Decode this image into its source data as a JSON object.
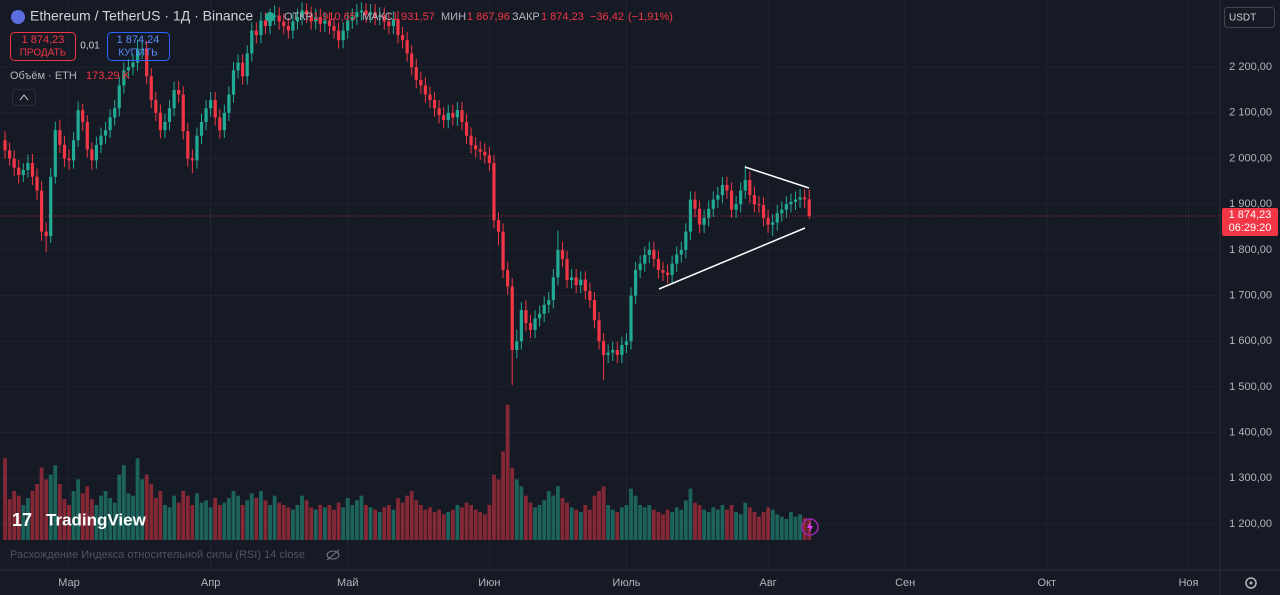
{
  "chart_data": {
    "type": "candlestick",
    "title": "Ethereum / TetherUS · 1Д · Binance",
    "ohlc_titles": {
      "open": "ОТКР",
      "high": "МАКС",
      "low": "МИН",
      "close": "ЗАКР"
    },
    "ohlc_labels": {
      "open": "1 910,65",
      "high": "1 931,57",
      "low": "1 867,96",
      "close": "1 874,23"
    },
    "change": {
      "value": -36.42,
      "label": "−36,42"
    },
    "change_pct": {
      "value": -1.91,
      "label": "(−1,91%)"
    },
    "sell": {
      "price": "1 874,23",
      "text": "ПРОДАТЬ"
    },
    "spread": "0,01",
    "buy": {
      "price": "1 874,24",
      "text": "КУПИТЬ"
    },
    "volume_title": "Объём · ETH",
    "volume_label": "173,29 K",
    "currency": "USDT",
    "price_tag": {
      "price": "1 874,23",
      "countdown": "06:29:20"
    },
    "indicator": "Расхождение Индекса относительной силы (RSI) 14 close",
    "logo": "TradingView",
    "up_color": "#22ab94",
    "down_color": "#f23645",
    "open": [
      2040,
      2018,
      2000,
      1980,
      1964,
      1975,
      1990,
      1960,
      1930,
      1840,
      1830,
      1960,
      2062,
      2030,
      2000,
      1996,
      2040,
      2106,
      2080,
      2020,
      1996,
      2030,
      2050,
      2062,
      2090,
      2110,
      2160,
      2193,
      2200,
      2210,
      2237,
      2240,
      2180,
      2128,
      2100,
      2062,
      2080,
      2110,
      2150,
      2140,
      2060,
      2000,
      1996,
      2050,
      2080,
      2110,
      2128,
      2090,
      2062,
      2100,
      2140,
      2193,
      2210,
      2180,
      2230,
      2280,
      2270,
      2302,
      2290,
      2310,
      2313,
      2300,
      2290,
      2280,
      2300,
      2310,
      2324,
      2315,
      2300,
      2310,
      2295,
      2302,
      2290,
      2280,
      2259,
      2280,
      2302,
      2310,
      2320,
      2324,
      2315,
      2320,
      2310,
      2313,
      2300,
      2290,
      2305,
      2270,
      2259,
      2230,
      2200,
      2172,
      2160,
      2140,
      2128,
      2110,
      2095,
      2084,
      2100,
      2090,
      2106,
      2080,
      2050,
      2029,
      2020,
      2015,
      2007,
      1990,
      1865,
      1840,
      1756,
      1720,
      1581,
      1600,
      1668,
      1640,
      1625,
      1650,
      1660,
      1680,
      1690,
      1740,
      1800,
      1780,
      1734,
      1740,
      1723,
      1735,
      1710,
      1690,
      1646,
      1600,
      1570,
      1575,
      1581,
      1570,
      1592,
      1600,
      1700,
      1756,
      1770,
      1789,
      1800,
      1780,
      1756,
      1750,
      1745,
      1770,
      1790,
      1800,
      1840,
      1910,
      1890,
      1855,
      1870,
      1890,
      1910,
      1920,
      1942,
      1930,
      1888,
      1900,
      1930,
      1953,
      1920,
      1900,
      1898,
      1870,
      1855,
      1860,
      1880,
      1888,
      1900,
      1905,
      1910,
      1915,
      1910.65
    ],
    "high": [
      2060,
      2035,
      2018,
      1998,
      1990,
      2008,
      2010,
      1978,
      1950,
      1860,
      1980,
      2080,
      2085,
      2050,
      2020,
      2058,
      2125,
      2120,
      2095,
      2035,
      2048,
      2068,
      2080,
      2108,
      2128,
      2178,
      2210,
      2218,
      2228,
      2260,
      2262,
      2258,
      2198,
      2146,
      2118,
      2098,
      2128,
      2168,
      2170,
      2158,
      2078,
      2020,
      2068,
      2098,
      2128,
      2146,
      2146,
      2108,
      2118,
      2158,
      2211,
      2228,
      2228,
      2248,
      2298,
      2298,
      2320,
      2320,
      2328,
      2335,
      2331,
      2318,
      2308,
      2318,
      2328,
      2342,
      2340,
      2333,
      2328,
      2328,
      2320,
      2320,
      2308,
      2298,
      2298,
      2320,
      2328,
      2338,
      2342,
      2340,
      2338,
      2338,
      2331,
      2331,
      2318,
      2323,
      2323,
      2288,
      2277,
      2248,
      2218,
      2190,
      2178,
      2158,
      2146,
      2128,
      2113,
      2118,
      2118,
      2124,
      2124,
      2098,
      2068,
      2047,
      2038,
      2033,
      2025,
      2008,
      1882,
      1858,
      1774,
      1738,
      1625,
      1686,
      1690,
      1658,
      1668,
      1678,
      1698,
      1708,
      1758,
      1842,
      1818,
      1798,
      1758,
      1758,
      1753,
      1753,
      1728,
      1708,
      1664,
      1618,
      1593,
      1599,
      1599,
      1610,
      1618,
      1718,
      1774,
      1788,
      1807,
      1818,
      1818,
      1798,
      1774,
      1768,
      1788,
      1808,
      1818,
      1858,
      1928,
      1928,
      1908,
      1888,
      1908,
      1928,
      1938,
      1960,
      1960,
      1948,
      1918,
      1948,
      1985,
      1971,
      1938,
      1918,
      1916,
      1888,
      1878,
      1898,
      1906,
      1918,
      1923,
      1928,
      1933,
      1933,
      1931.57
    ],
    "low": [
      2000,
      1985,
      1962,
      1945,
      1948,
      1958,
      1942,
      1910,
      1820,
      1795,
      1815,
      1945,
      2012,
      1982,
      1975,
      1978,
      2025,
      2060,
      2002,
      1975,
      1978,
      2012,
      2032,
      2045,
      2072,
      2092,
      2142,
      2175,
      2182,
      2192,
      2218,
      2162,
      2110,
      2082,
      2044,
      2045,
      2062,
      2092,
      2122,
      2042,
      1982,
      1968,
      1978,
      2032,
      2062,
      2092,
      2072,
      2044,
      2045,
      2082,
      2122,
      2175,
      2162,
      2162,
      2212,
      2252,
      2252,
      2272,
      2272,
      2292,
      2282,
      2272,
      2262,
      2262,
      2282,
      2292,
      2297,
      2282,
      2282,
      2277,
      2277,
      2272,
      2262,
      2241,
      2241,
      2262,
      2284,
      2292,
      2302,
      2297,
      2297,
      2292,
      2292,
      2282,
      2272,
      2272,
      2252,
      2241,
      2212,
      2182,
      2154,
      2142,
      2122,
      2110,
      2092,
      2077,
      2066,
      2066,
      2072,
      2072,
      2062,
      2032,
      2011,
      2002,
      1997,
      1989,
      1972,
      1847,
      1810,
      1738,
      1702,
      1504,
      1563,
      1582,
      1622,
      1607,
      1607,
      1632,
      1642,
      1662,
      1672,
      1722,
      1762,
      1716,
      1716,
      1705,
      1705,
      1692,
      1672,
      1628,
      1582,
      1515,
      1552,
      1557,
      1552,
      1552,
      1574,
      1582,
      1682,
      1738,
      1752,
      1771,
      1762,
      1738,
      1732,
      1727,
      1727,
      1752,
      1772,
      1782,
      1822,
      1872,
      1837,
      1837,
      1852,
      1872,
      1892,
      1902,
      1912,
      1870,
      1870,
      1882,
      1912,
      1902,
      1882,
      1880,
      1852,
      1837,
      1830,
      1842,
      1862,
      1870,
      1882,
      1887,
      1892,
      1892,
      1867.96
    ],
    "close": [
      2018,
      2000,
      1980,
      1964,
      1975,
      1990,
      1960,
      1930,
      1840,
      1830,
      1960,
      2062,
      2030,
      2000,
      1996,
      2040,
      2106,
      2080,
      2020,
      1996,
      2030,
      2050,
      2062,
      2090,
      2110,
      2160,
      2193,
      2200,
      2210,
      2237,
      2240,
      2180,
      2128,
      2100,
      2062,
      2080,
      2110,
      2150,
      2140,
      2060,
      2000,
      1996,
      2050,
      2080,
      2110,
      2128,
      2090,
      2062,
      2100,
      2140,
      2193,
      2210,
      2180,
      2230,
      2280,
      2270,
      2302,
      2290,
      2310,
      2313,
      2300,
      2290,
      2280,
      2300,
      2310,
      2324,
      2315,
      2300,
      2310,
      2295,
      2302,
      2290,
      2280,
      2259,
      2280,
      2302,
      2310,
      2320,
      2324,
      2315,
      2320,
      2310,
      2313,
      2300,
      2290,
      2305,
      2270,
      2259,
      2230,
      2200,
      2172,
      2160,
      2140,
      2128,
      2110,
      2095,
      2084,
      2100,
      2090,
      2106,
      2080,
      2050,
      2029,
      2020,
      2015,
      2007,
      1990,
      1865,
      1840,
      1756,
      1720,
      1581,
      1600,
      1668,
      1640,
      1625,
      1650,
      1660,
      1680,
      1690,
      1740,
      1800,
      1780,
      1734,
      1740,
      1723,
      1735,
      1710,
      1690,
      1646,
      1600,
      1570,
      1575,
      1581,
      1570,
      1592,
      1600,
      1700,
      1756,
      1770,
      1789,
      1800,
      1780,
      1756,
      1750,
      1745,
      1770,
      1790,
      1800,
      1840,
      1910,
      1890,
      1855,
      1870,
      1890,
      1910,
      1920,
      1942,
      1930,
      1888,
      1900,
      1930,
      1953,
      1920,
      1900,
      1898,
      1870,
      1855,
      1860,
      1880,
      1888,
      1900,
      1905,
      1910,
      1915,
      1910.65,
      1874.23
    ],
    "volume": [
      700000,
      350000,
      420000,
      380000,
      300000,
      360000,
      420000,
      480000,
      620000,
      520000,
      560000,
      640000,
      480000,
      350000,
      300000,
      420000,
      520000,
      400000,
      460000,
      350000,
      300000,
      380000,
      420000,
      360000,
      320000,
      560000,
      640000,
      400000,
      380000,
      700000,
      520000,
      560000,
      480000,
      360000,
      420000,
      300000,
      280000,
      380000,
      320000,
      420000,
      380000,
      300000,
      400000,
      320000,
      340000,
      280000,
      360000,
      300000,
      320000,
      360000,
      420000,
      380000,
      300000,
      340000,
      400000,
      360000,
      420000,
      340000,
      300000,
      380000,
      320000,
      300000,
      280000,
      260000,
      300000,
      380000,
      340000,
      280000,
      260000,
      300000,
      280000,
      300000,
      260000,
      320000,
      280000,
      360000,
      300000,
      340000,
      380000,
      300000,
      280000,
      260000,
      240000,
      280000,
      300000,
      260000,
      360000,
      320000,
      380000,
      420000,
      340000,
      300000,
      260000,
      280000,
      240000,
      260000,
      220000,
      240000,
      260000,
      300000,
      280000,
      320000,
      300000,
      260000,
      240000,
      220000,
      300000,
      560000,
      520000,
      760000,
      1160000,
      620000,
      520000,
      460000,
      380000,
      320000,
      280000,
      300000,
      340000,
      420000,
      380000,
      460000,
      360000,
      320000,
      280000,
      260000,
      240000,
      300000,
      260000,
      380000,
      420000,
      460000,
      300000,
      260000,
      240000,
      280000,
      300000,
      440000,
      380000,
      300000,
      280000,
      300000,
      260000,
      240000,
      220000,
      260000,
      240000,
      280000,
      260000,
      340000,
      440000,
      320000,
      300000,
      260000,
      240000,
      280000,
      260000,
      300000,
      260000,
      300000,
      240000,
      220000,
      320000,
      280000,
      240000,
      200000,
      240000,
      280000,
      260000,
      220000,
      200000,
      180000,
      240000,
      200000,
      220000,
      190000,
      173290
    ],
    "volume_lim": [
      0,
      1200000
    ],
    "xlim": [
      -1.1,
      265.9
    ],
    "xticks": [
      {
        "value": 14,
        "label": "Мар"
      },
      {
        "value": 45,
        "label": "Апр"
      },
      {
        "value": 75,
        "label": "Май"
      },
      {
        "value": 106,
        "label": "Июн"
      },
      {
        "value": 136,
        "label": "Июль"
      },
      {
        "value": 167,
        "label": "Авг"
      },
      {
        "value": 197,
        "label": "Сен"
      },
      {
        "value": 228,
        "label": "Окт"
      },
      {
        "value": 259,
        "label": "Ноя"
      }
    ],
    "ylim": [
      1165,
      2347
    ],
    "yticks": [
      {
        "value": 1200,
        "label": "1 200,00"
      },
      {
        "value": 1300,
        "label": "1 300,00"
      },
      {
        "value": 1400,
        "label": "1 400,00"
      },
      {
        "value": 1500,
        "label": "1 500,00"
      },
      {
        "value": 1600,
        "label": "1 600,00"
      },
      {
        "value": 1700,
        "label": "1 700,00"
      },
      {
        "value": 1800,
        "label": "1 800,00"
      },
      {
        "value": 1900,
        "label": "1 900,00"
      },
      {
        "value": 2000,
        "label": "2 000,00"
      },
      {
        "value": 2100,
        "label": "2 100,00"
      },
      {
        "value": 2200,
        "label": "2 200,00"
      }
    ],
    "grid": true
  }
}
